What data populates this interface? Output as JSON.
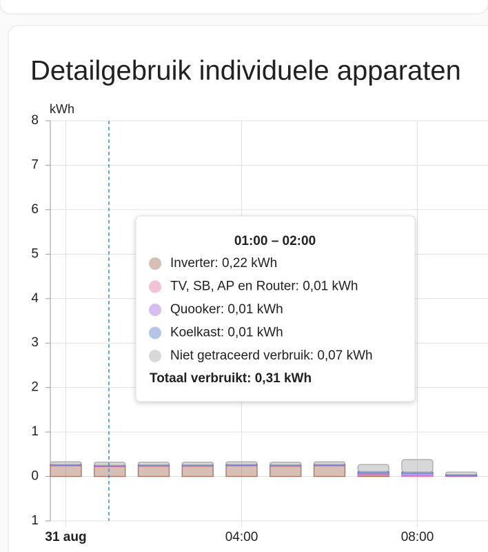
{
  "chart_data": {
    "type": "bar",
    "stacked": true,
    "title": "Detailgebruik individuele apparaten",
    "y_label": "kWh",
    "categories": [
      "31 aug",
      null,
      null,
      null,
      "04:00",
      null,
      null,
      null,
      "08:00",
      null
    ],
    "ylim": [
      -1,
      8
    ],
    "yticks": [
      {
        "value": -1,
        "label": "1"
      },
      0,
      1,
      2,
      3,
      4,
      5,
      6,
      7,
      8
    ],
    "grid": true,
    "series": [
      {
        "name": "Inverter",
        "color": "#a8705a",
        "values": [
          0.24,
          0.22,
          0.23,
          0.23,
          0.24,
          0.23,
          0.24,
          0.02,
          0,
          0
        ]
      },
      {
        "name": "TV, SB, AP en Router",
        "color": "#e577ab",
        "values": [
          0.01,
          0.01,
          0.01,
          0.01,
          0.01,
          0.01,
          0.01,
          0.03,
          0.03,
          0.01
        ]
      },
      {
        "name": "Quooker",
        "color": "#a36fe0",
        "values": [
          0.01,
          0.01,
          0.01,
          0.01,
          0.01,
          0.01,
          0.01,
          0.03,
          0.04,
          0.01
        ]
      },
      {
        "name": "Koelkast",
        "color": "#5b7fd1",
        "values": [
          0.01,
          0.01,
          0.01,
          0.01,
          0.01,
          0.01,
          0.01,
          0.03,
          0.03,
          0.02
        ]
      },
      {
        "name": "Niet getraceerd verbruik",
        "color": "#a8a8a8",
        "values": [
          0.06,
          0.07,
          0.06,
          0.06,
          0.06,
          0.06,
          0.06,
          0.16,
          0.28,
          0.06
        ]
      }
    ],
    "tooltip": {
      "title": "01:00 – 02:00",
      "items": [
        "Inverter: 0,22 kWh",
        "TV, SB, AP en Router: 0,01 kWh",
        "Quooker: 0,01 kWh",
        "Koelkast: 0,01 kWh",
        "Niet getraceerd verbruik: 0,07 kWh"
      ],
      "total": "Totaal verbruikt: 0,31 kWh"
    }
  }
}
